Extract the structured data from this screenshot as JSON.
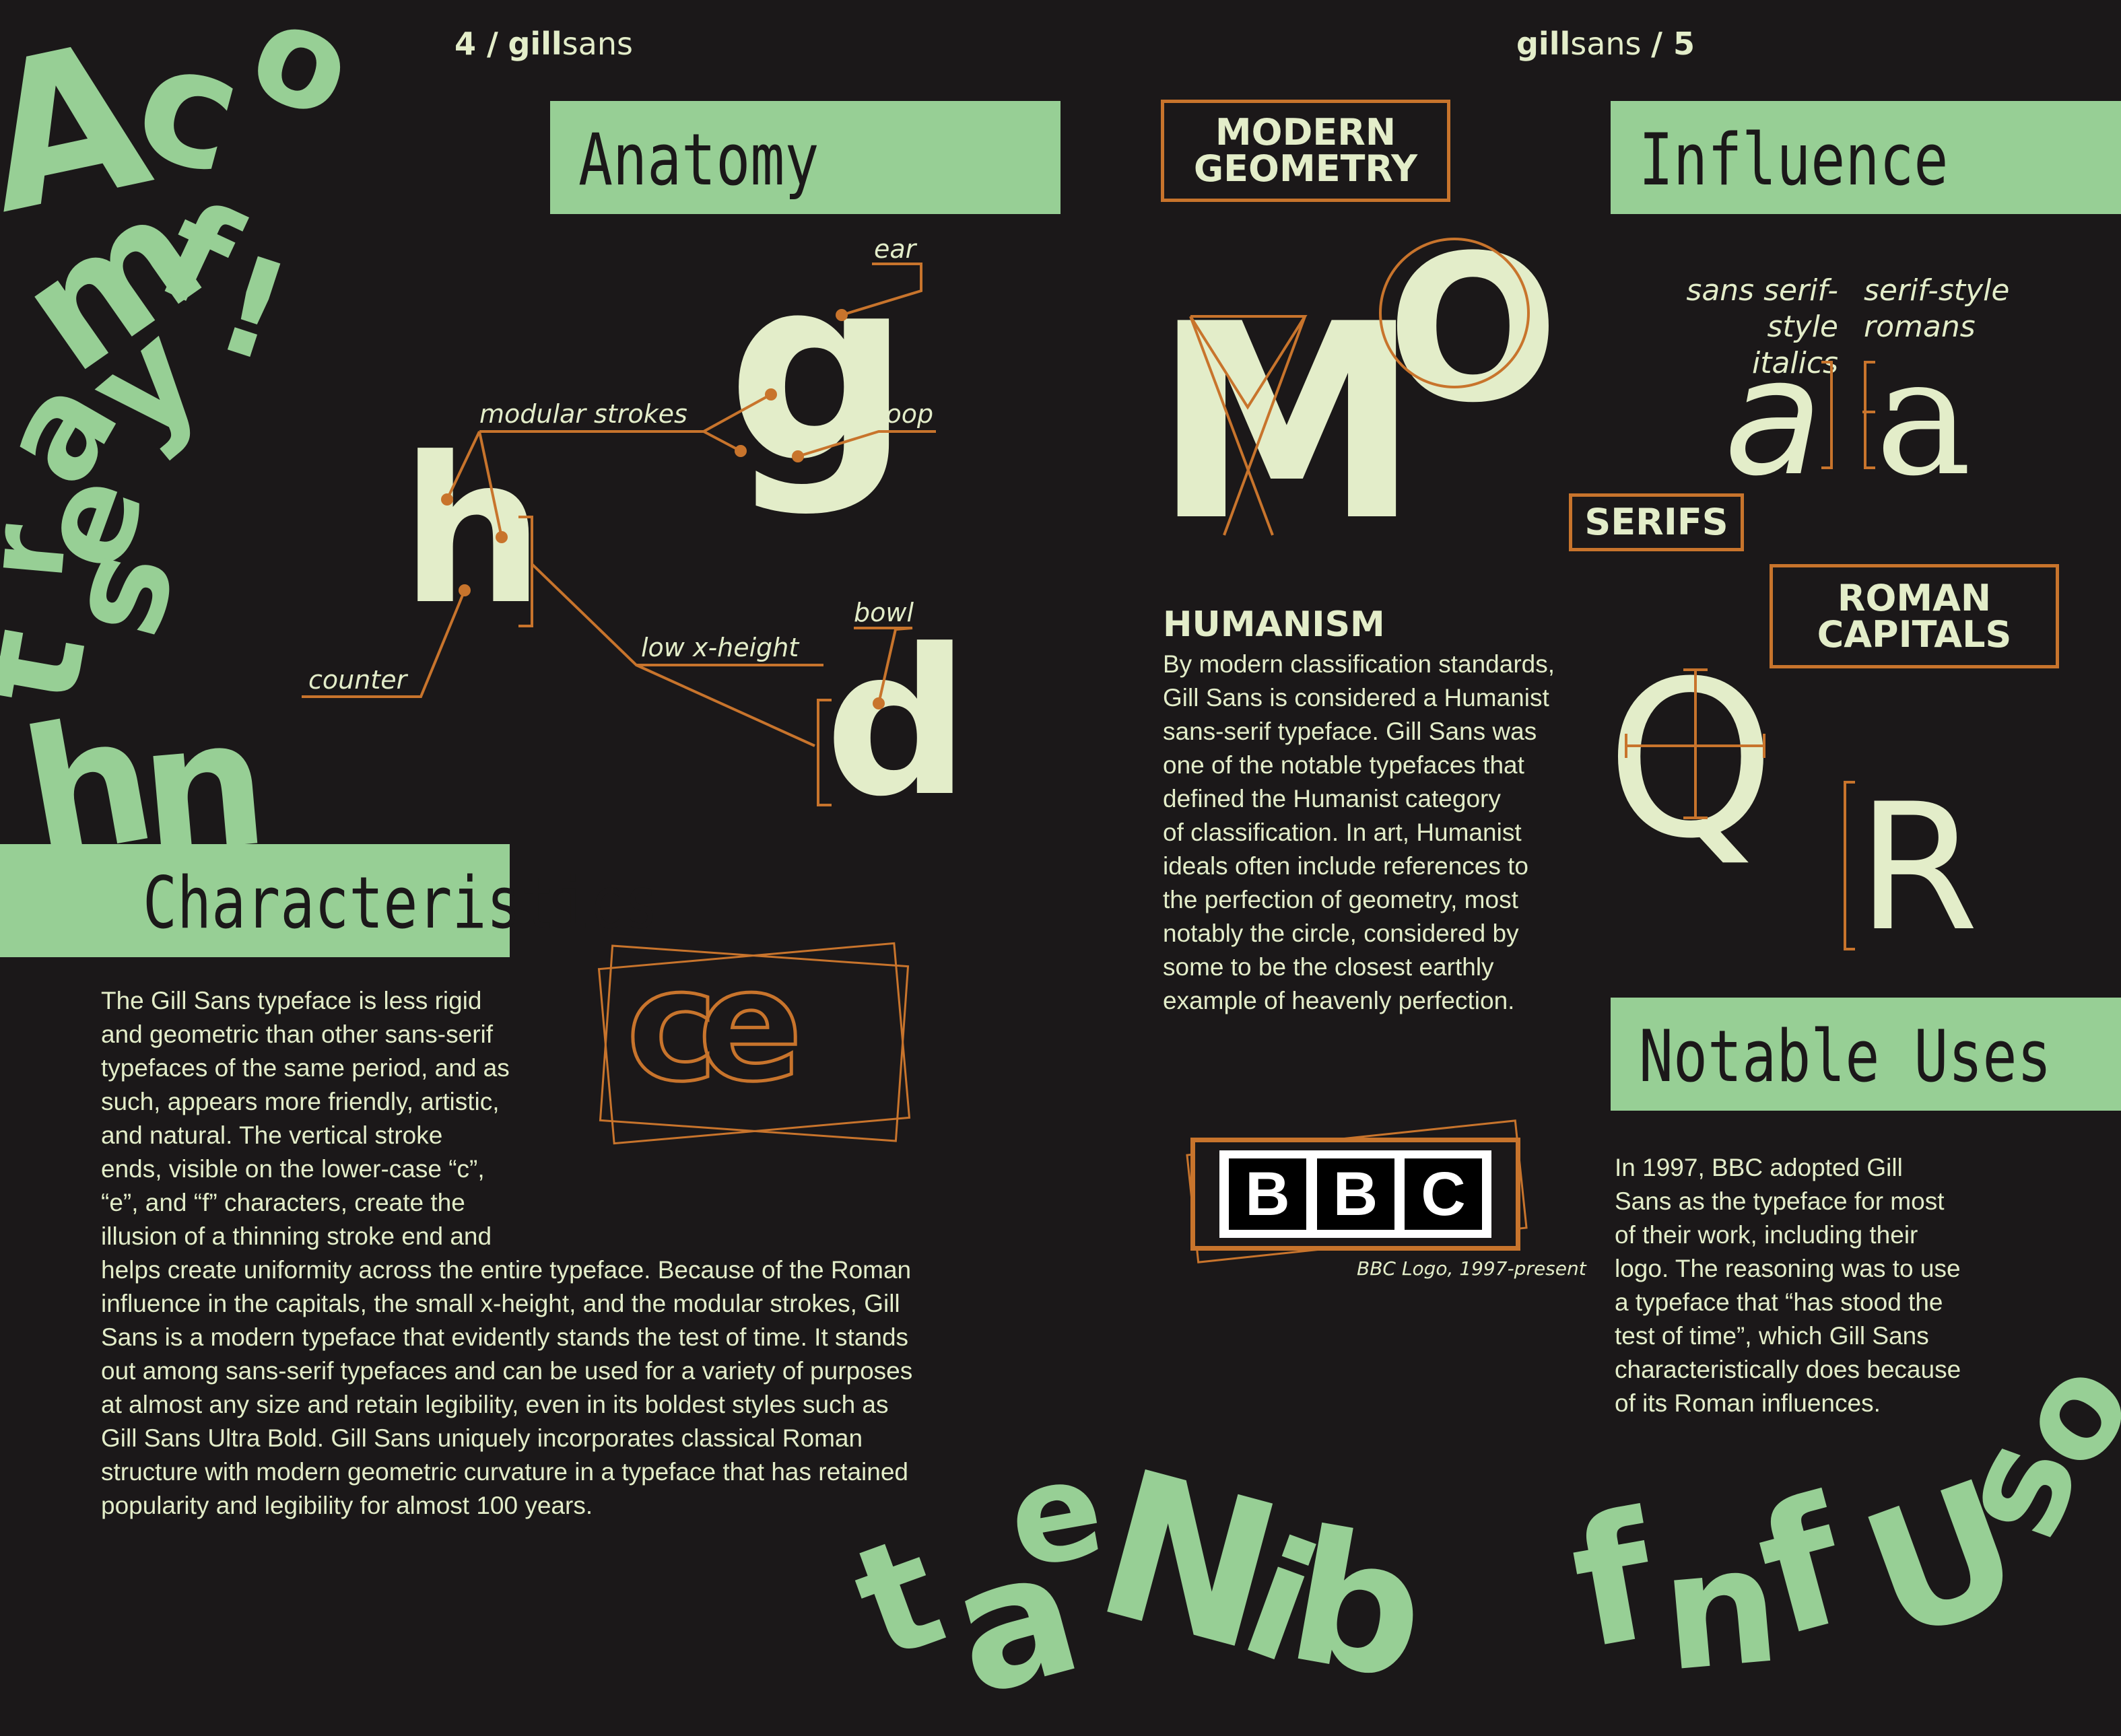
{
  "header_left": {
    "page": "4 /",
    "bold": "gill",
    "light": "sans"
  },
  "header_right": {
    "bold": "gill",
    "light": "sans",
    "page": "/ 5"
  },
  "sections": {
    "anatomy": "Anatomy",
    "characteristics": "Characteristics",
    "influence": "Influence",
    "notable_uses": "Notable Uses"
  },
  "anatomy_labels": {
    "ear": "ear",
    "modular_strokes": "modular strokes",
    "loop": "loop",
    "counter": "counter",
    "bowl": "bowl",
    "low_x_height": "low x-height"
  },
  "anatomy_letters": {
    "g": "g",
    "h": "h",
    "d": "d"
  },
  "ligature": "ce",
  "modern_geometry": {
    "line1": "MODERN",
    "line2": "GEOMETRY"
  },
  "geometry_letters": {
    "m": "M",
    "o": "O"
  },
  "humanism": {
    "title": "HUMANISM",
    "lines": [
      "By modern classification standards,",
      "Gill Sans is considered a Humanist",
      "sans-serif typeface. Gill Sans was",
      "one of the notable typefaces that",
      "defined the Humanist category",
      "of classification. In art, Humanist",
      "ideals often include references to",
      "the perfection of geometry, most",
      "notably the circle, considered by",
      "some to be the closest earthly",
      "example of heavenly perfection."
    ]
  },
  "bbc": {
    "letters": [
      "B",
      "B",
      "C"
    ],
    "caption": "BBC Logo, 1997-present"
  },
  "characteristics_lines": [
    "The Gill Sans typeface is less rigid",
    "and geometric than other sans-serif",
    "typefaces of the same period, and as",
    "such, appears more friendly, artistic,",
    "and natural. The vertical stroke",
    "ends, visible on the lower-case “c”,",
    "“e”, and “f” characters, create the",
    "illusion of a thinning stroke end and",
    "helps create uniformity across the entire typeface. Because of the Roman",
    "influence in the capitals, the small x-height, and the modular strokes, Gill",
    "Sans is a modern typeface that evidently stands the test of time. It stands",
    "out among sans-serif typefaces and can be used for a variety of purposes",
    "at almost any size and retain legibility, even in its boldest styles such as",
    "Gill Sans Ultra Bold. Gill Sans uniquely incorporates classical Roman",
    "structure with modern geometric curvature in a typeface that has retained",
    "popularity and legibility for almost 100 years."
  ],
  "influence": {
    "italics_label": {
      "line1": "sans serif-style",
      "line2": "italics"
    },
    "romans_label": {
      "line1": "serif-style",
      "line2": "romans"
    },
    "italic_a": "a",
    "roman_a": "a",
    "serifs": "SERIFS",
    "roman_capitals": {
      "line1": "ROMAN",
      "line2": "CAPITALS"
    },
    "q": "Q",
    "r": "R"
  },
  "notable_lines": [
    "In 1997, BBC adopted Gill",
    "Sans as the typeface for most",
    "of their work, including their",
    "logo. The reasoning was to use",
    "a typeface that “has stood the",
    "test of time”, which Gill Sans",
    "characteristically does because",
    "of its Roman influences."
  ],
  "scatter_left": [
    "A",
    "c",
    "o",
    "m",
    "f",
    "!",
    "a",
    "y",
    "e",
    "t",
    "s",
    "r",
    "h",
    "n"
  ],
  "scatter_bottom": [
    "t",
    "a",
    "e",
    "N",
    "i",
    "b"
  ],
  "scatter_bottom_right": [
    "f",
    "n",
    "f",
    "U",
    "s",
    "o"
  ],
  "colors": {
    "background": "#1b1819",
    "green": "#97cf95",
    "cream": "#e3edc9",
    "orange": "#c8742c"
  }
}
